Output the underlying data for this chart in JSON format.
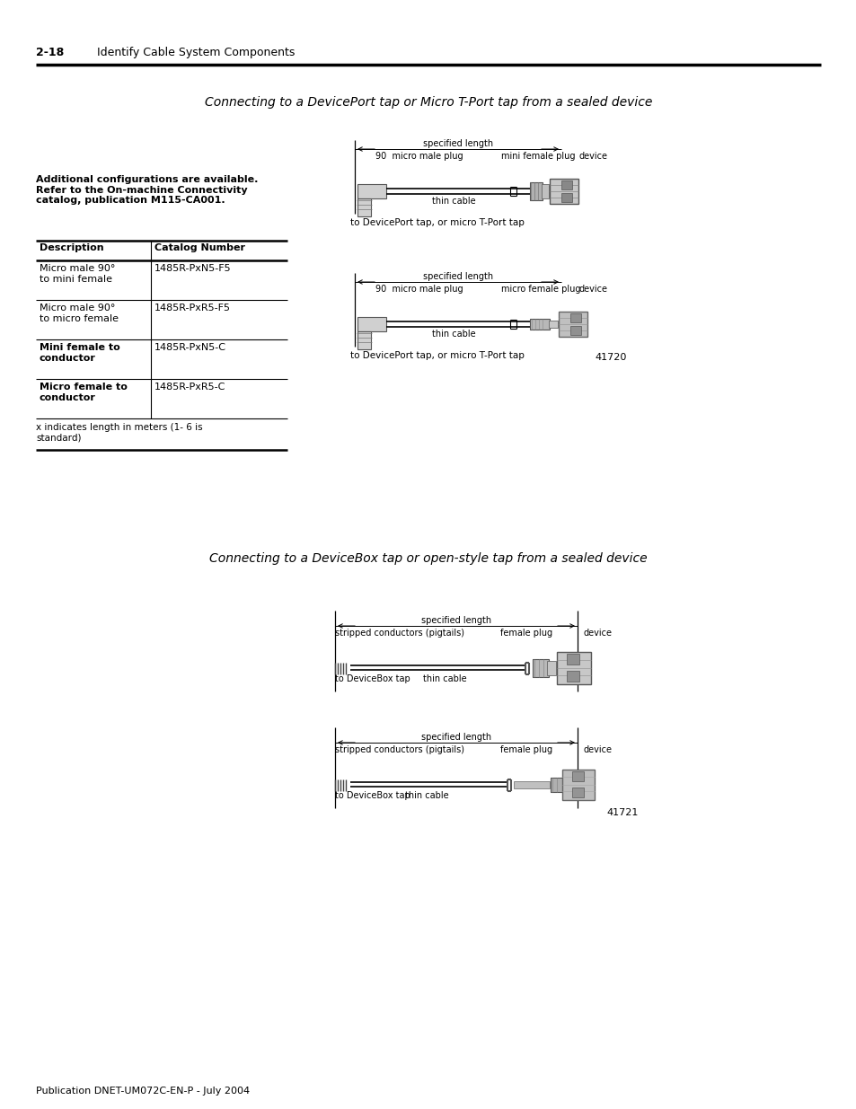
{
  "page_header_num": "2-18",
  "page_header_text": "Identify Cable System Components",
  "section1_title": "Connecting to a DevicePort tap or Micro T-Port tap from a sealed device",
  "section2_title": "Connecting to a DeviceBox tap or open-style tap from a sealed device",
  "additional_text_bold": "Additional configurations are available.\nRefer to the On-machine Connectivity\ncatalog, publication M115-CA001.",
  "table_header": [
    "Description",
    "Catalog Number"
  ],
  "table_rows": [
    [
      "Micro male 90°\nto mini female",
      "1485R-PxN5-F5"
    ],
    [
      "Micro male 90°\nto micro female",
      "1485R-PxR5-F5"
    ],
    [
      "Mini female to\nconductor",
      "1485R-PxN5-C"
    ],
    [
      "Micro female to\nconductor",
      "1485R-PxR5-C"
    ]
  ],
  "table_note": "x indicates length in meters (1- 6 is\nstandard)",
  "fig1_number": "41720",
  "fig2_number": "41721",
  "footer_text": "Publication DNET-UM072C-EN-P - July 2004",
  "bg_color": "#ffffff"
}
